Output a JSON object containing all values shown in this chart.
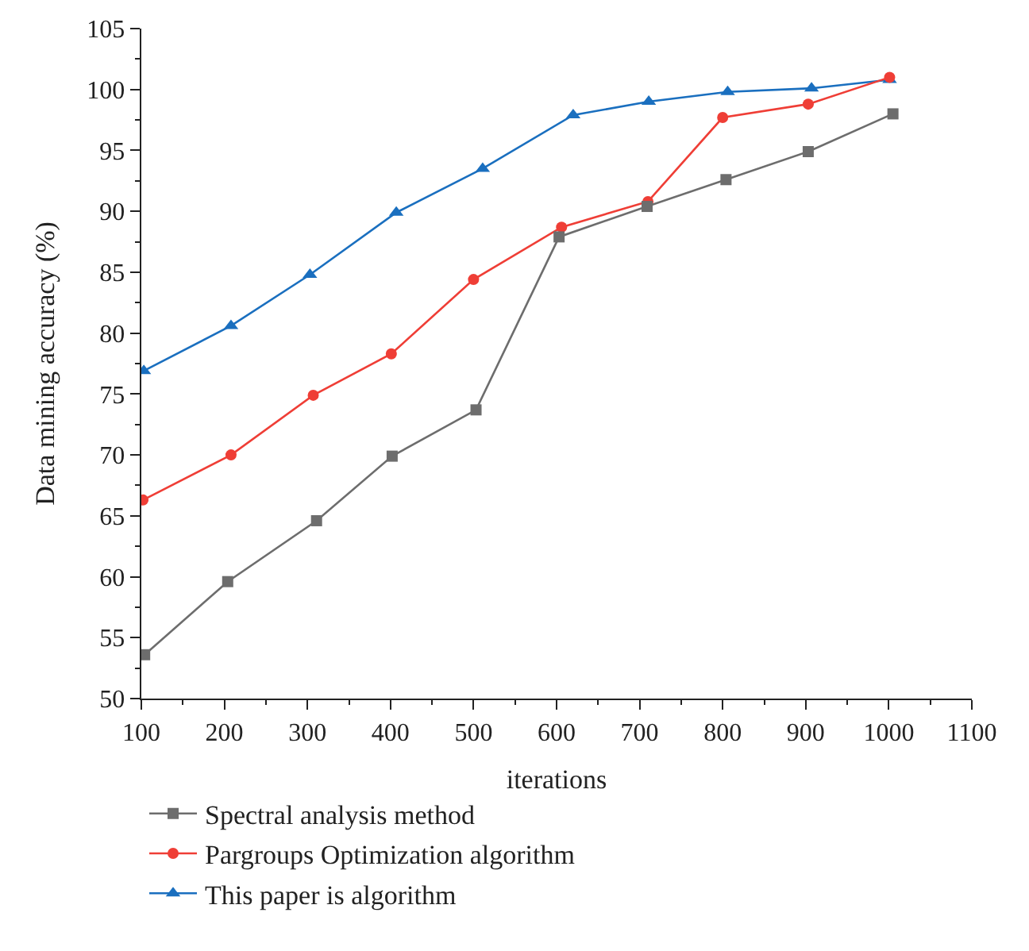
{
  "chart_data": {
    "type": "line",
    "xlabel": "iterations",
    "ylabel": "Data mining accuracy (%)",
    "xlim": [
      100,
      1100
    ],
    "xticks": [
      100,
      200,
      300,
      400,
      500,
      600,
      700,
      800,
      900,
      1000,
      1100
    ],
    "ylim": [
      50,
      105
    ],
    "yticks": [
      50,
      55,
      60,
      65,
      70,
      75,
      80,
      85,
      90,
      95,
      100,
      105
    ],
    "grid": false,
    "legend": "bottom",
    "line_style": "solid",
    "series": [
      {
        "name": "Spectral analysis method",
        "color": "#6d6d6d",
        "marker": "square",
        "x": [
          104,
          204,
          311,
          402,
          503,
          603,
          709,
          804,
          903,
          1005
        ],
        "values": [
          53.6,
          59.6,
          64.6,
          69.9,
          73.7,
          87.9,
          90.4,
          92.6,
          94.9,
          98.0
        ]
      },
      {
        "name": "Pargroups Optimization algorithm",
        "color": "#ef3e36",
        "marker": "circle",
        "x": [
          102,
          208,
          307,
          401,
          500,
          606,
          710,
          800,
          903,
          1001
        ],
        "values": [
          66.3,
          70.0,
          74.9,
          78.3,
          84.4,
          88.7,
          90.8,
          97.7,
          98.8,
          101.0
        ]
      },
      {
        "name": "This paper is algorithm",
        "color": "#1a6fbf",
        "marker": "triangle",
        "x": [
          103,
          208,
          303,
          407,
          511,
          620,
          711,
          806,
          907,
          1001
        ],
        "values": [
          76.9,
          80.6,
          84.8,
          89.9,
          93.5,
          97.9,
          99.0,
          99.8,
          100.1,
          100.8
        ]
      }
    ]
  }
}
